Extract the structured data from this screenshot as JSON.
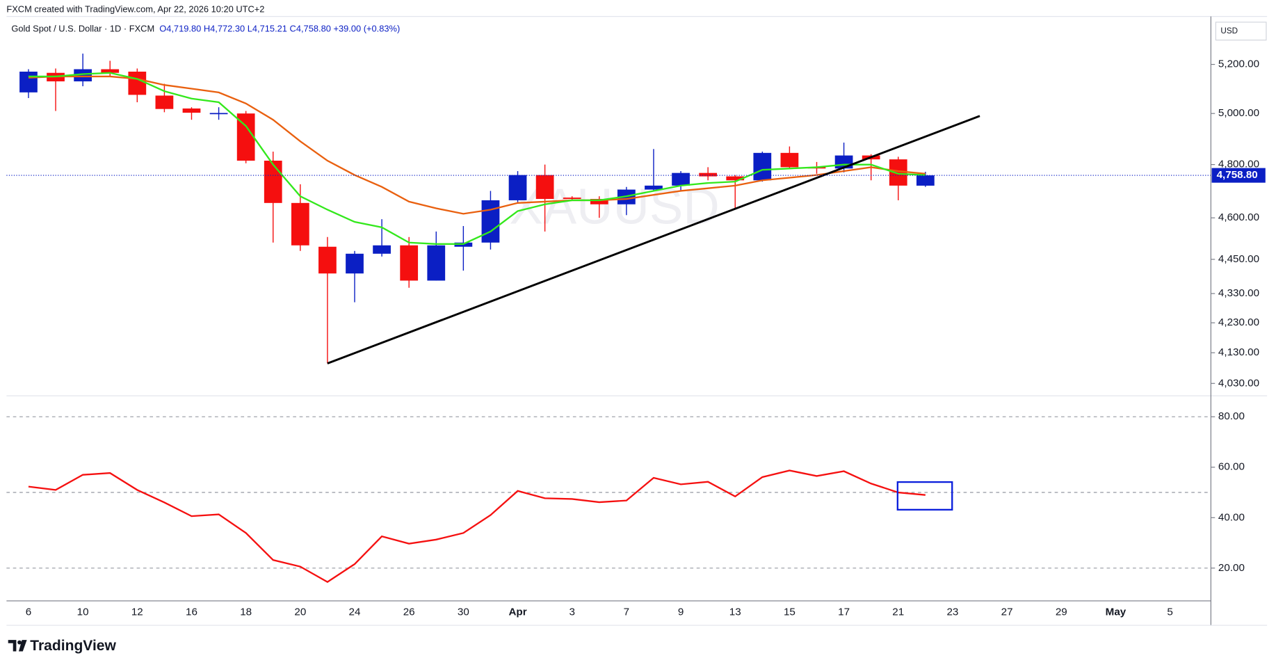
{
  "header": {
    "credit": "FXCM created with TradingView.com, Apr 22, 2026 10:20 UTC+2",
    "symbol": "Gold Spot / U.S. Dollar · 1D · FXCM",
    "ohlc": "O4,719.80 H4,772.30 L4,715.21 C4,758.80 +39.00 (+0.83%)"
  },
  "footer": "TradingView",
  "chart_data": [
    {
      "type": "candlestick",
      "watermark": "XAUUSD",
      "currency": "USD",
      "log_scale": true,
      "grid": false,
      "categories": [
        "6",
        null,
        "10",
        null,
        "12",
        null,
        "16",
        null,
        "18",
        null,
        "20",
        null,
        "24",
        null,
        "26",
        null,
        "30",
        null,
        "Apr",
        null,
        "3",
        null,
        "7",
        null,
        "9",
        null,
        "13",
        null,
        "15",
        null,
        "17",
        null,
        "21",
        null,
        "23",
        null,
        "27",
        null,
        "29",
        null,
        "May",
        null,
        "5"
      ],
      "open": [
        5085,
        5165,
        5130,
        5180,
        5170,
        5072,
        5020,
        4998,
        5000,
        4815,
        4655,
        4495,
        4400,
        4470,
        4500,
        4375,
        4495,
        4510,
        4665,
        4760,
        4675,
        4670,
        4650,
        4705,
        4720,
        4768,
        4755,
        4740,
        4845,
        4790,
        4785,
        4835,
        4820,
        4719.8,
        null,
        null,
        null,
        null,
        null,
        null,
        null,
        null,
        null
      ],
      "high": [
        5180,
        5183,
        5245,
        5215,
        5183,
        5120,
        5025,
        5025,
        5010,
        4850,
        4725,
        4530,
        4480,
        4595,
        4530,
        4550,
        4570,
        4700,
        4775,
        4800,
        4680,
        4680,
        4715,
        4860,
        4775,
        4790,
        4760,
        4850,
        4870,
        4810,
        4885,
        4840,
        4830,
        4772.3,
        null,
        null,
        null,
        null,
        null,
        null,
        null,
        null,
        null
      ],
      "low": [
        5062,
        5010,
        5110,
        5150,
        5045,
        5005,
        4975,
        4975,
        4805,
        4510,
        4480,
        4095,
        4300,
        4460,
        4350,
        4375,
        4410,
        4485,
        4655,
        4550,
        4665,
        4600,
        4610,
        4700,
        4700,
        4740,
        4630,
        4735,
        4785,
        4765,
        4770,
        4740,
        4665,
        4715.21,
        null,
        null,
        null,
        null,
        null,
        null,
        null,
        null,
        null
      ],
      "close": [
        5170,
        5130,
        5180,
        5165,
        5075,
        5018,
        5003,
        5002,
        4815,
        4655,
        4500,
        4400,
        4470,
        4500,
        4375,
        4500,
        4510,
        4665,
        4760,
        4670,
        4670,
        4650,
        4705,
        4720,
        4768,
        4755,
        4740,
        4845,
        4790,
        4785,
        4835,
        4820,
        4720,
        4758.8,
        null,
        null,
        null,
        null,
        null,
        null,
        null,
        null,
        null
      ],
      "up_color": "#0b1fc4",
      "down_color": "#f50f0f",
      "overlays": [
        {
          "color": "#e9600f",
          "values": [
            5145,
            5150,
            5150,
            5150,
            5140,
            5115,
            5100,
            5085,
            5040,
            4975,
            4890,
            4815,
            4760,
            4715,
            4660,
            4635,
            4615,
            4630,
            4655,
            4660,
            4665,
            4665,
            4670,
            4685,
            4700,
            4710,
            4720,
            4740,
            4750,
            4760,
            4775,
            4790,
            4775,
            4765,
            null,
            null,
            null,
            null,
            null,
            null,
            null,
            null,
            null
          ]
        },
        {
          "color": "#33e81c",
          "values": [
            5150,
            5150,
            5160,
            5165,
            5140,
            5090,
            5060,
            5045,
            4950,
            4800,
            4680,
            4630,
            4585,
            4565,
            4510,
            4505,
            4505,
            4550,
            4625,
            4650,
            4665,
            4665,
            4680,
            4700,
            4720,
            4730,
            4735,
            4780,
            4785,
            4790,
            4800,
            4800,
            4765,
            4760,
            null,
            null,
            null,
            null,
            null,
            null,
            null,
            null,
            null
          ]
        }
      ],
      "trendline": [
        4095,
        4990
      ],
      "last_price": {
        "value": 4758.8,
        "label": "4,758.80"
      },
      "ylim": [
        3993,
        5403
      ],
      "yticks": [
        {
          "value": 4030,
          "label": "4,030.00"
        },
        {
          "value": 4130,
          "label": "4,130.00"
        },
        {
          "value": 4230,
          "label": "4,230.00"
        },
        {
          "value": 4330,
          "label": "4,330.00"
        },
        {
          "value": 4450,
          "label": "4,450.00"
        },
        {
          "value": 4600,
          "label": "4,600.00"
        },
        {
          "value": 4800,
          "label": "4,800.00"
        },
        {
          "value": 5000,
          "label": "5,000.00"
        },
        {
          "value": 5200,
          "label": "5,200.00"
        }
      ]
    },
    {
      "type": "line",
      "color": "#f51010",
      "values": [
        52.3,
        51,
        57,
        57.7,
        51,
        46,
        40.6,
        41.3,
        33.9,
        23.2,
        20.6,
        14.5,
        21.6,
        32.6,
        29.7,
        31.3,
        33.9,
        41,
        50.6,
        47.7,
        47.4,
        46.1,
        46.8,
        55.8,
        53.2,
        54.2,
        48.4,
        56.1,
        58.7,
        56.5,
        58.4,
        53.5,
        50,
        49,
        null,
        null,
        null,
        null,
        null,
        null,
        null,
        null,
        null
      ],
      "bands": [
        20,
        50,
        80
      ],
      "ylim": [
        7,
        88
      ],
      "yticks": [
        {
          "value": 20,
          "label": "20.00"
        },
        {
          "value": 40,
          "label": "40.00"
        },
        {
          "value": 60,
          "label": "60.00"
        },
        {
          "value": 80,
          "label": "80.00"
        }
      ]
    }
  ]
}
